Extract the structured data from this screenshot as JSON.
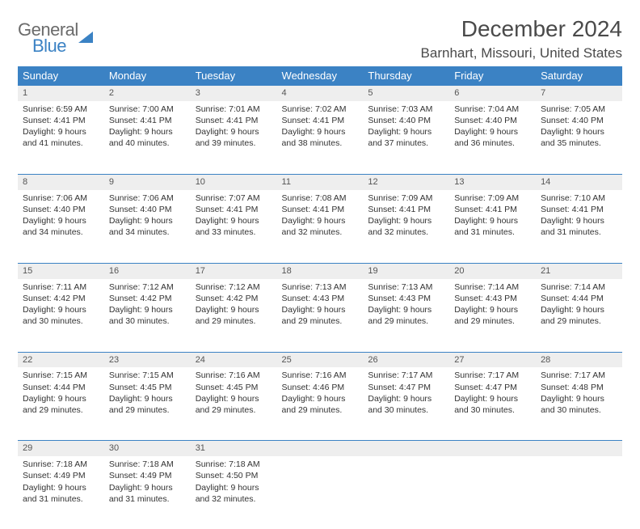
{
  "brand": {
    "part1": "General",
    "part2": "Blue"
  },
  "title": "December 2024",
  "location": "Barnhart, Missouri, United States",
  "colors": {
    "header_bg": "#3b82c4",
    "header_fg": "#ffffff",
    "daynum_bg": "#eeeeee",
    "rule": "#3b82c4",
    "text": "#333333"
  },
  "weekdays": [
    "Sunday",
    "Monday",
    "Tuesday",
    "Wednesday",
    "Thursday",
    "Friday",
    "Saturday"
  ],
  "weeks": [
    [
      {
        "n": "1",
        "sunrise": "6:59 AM",
        "sunset": "4:41 PM",
        "daylight": "9 hours and 41 minutes."
      },
      {
        "n": "2",
        "sunrise": "7:00 AM",
        "sunset": "4:41 PM",
        "daylight": "9 hours and 40 minutes."
      },
      {
        "n": "3",
        "sunrise": "7:01 AM",
        "sunset": "4:41 PM",
        "daylight": "9 hours and 39 minutes."
      },
      {
        "n": "4",
        "sunrise": "7:02 AM",
        "sunset": "4:41 PM",
        "daylight": "9 hours and 38 minutes."
      },
      {
        "n": "5",
        "sunrise": "7:03 AM",
        "sunset": "4:40 PM",
        "daylight": "9 hours and 37 minutes."
      },
      {
        "n": "6",
        "sunrise": "7:04 AM",
        "sunset": "4:40 PM",
        "daylight": "9 hours and 36 minutes."
      },
      {
        "n": "7",
        "sunrise": "7:05 AM",
        "sunset": "4:40 PM",
        "daylight": "9 hours and 35 minutes."
      }
    ],
    [
      {
        "n": "8",
        "sunrise": "7:06 AM",
        "sunset": "4:40 PM",
        "daylight": "9 hours and 34 minutes."
      },
      {
        "n": "9",
        "sunrise": "7:06 AM",
        "sunset": "4:40 PM",
        "daylight": "9 hours and 34 minutes."
      },
      {
        "n": "10",
        "sunrise": "7:07 AM",
        "sunset": "4:41 PM",
        "daylight": "9 hours and 33 minutes."
      },
      {
        "n": "11",
        "sunrise": "7:08 AM",
        "sunset": "4:41 PM",
        "daylight": "9 hours and 32 minutes."
      },
      {
        "n": "12",
        "sunrise": "7:09 AM",
        "sunset": "4:41 PM",
        "daylight": "9 hours and 32 minutes."
      },
      {
        "n": "13",
        "sunrise": "7:09 AM",
        "sunset": "4:41 PM",
        "daylight": "9 hours and 31 minutes."
      },
      {
        "n": "14",
        "sunrise": "7:10 AM",
        "sunset": "4:41 PM",
        "daylight": "9 hours and 31 minutes."
      }
    ],
    [
      {
        "n": "15",
        "sunrise": "7:11 AM",
        "sunset": "4:42 PM",
        "daylight": "9 hours and 30 minutes."
      },
      {
        "n": "16",
        "sunrise": "7:12 AM",
        "sunset": "4:42 PM",
        "daylight": "9 hours and 30 minutes."
      },
      {
        "n": "17",
        "sunrise": "7:12 AM",
        "sunset": "4:42 PM",
        "daylight": "9 hours and 29 minutes."
      },
      {
        "n": "18",
        "sunrise": "7:13 AM",
        "sunset": "4:43 PM",
        "daylight": "9 hours and 29 minutes."
      },
      {
        "n": "19",
        "sunrise": "7:13 AM",
        "sunset": "4:43 PM",
        "daylight": "9 hours and 29 minutes."
      },
      {
        "n": "20",
        "sunrise": "7:14 AM",
        "sunset": "4:43 PM",
        "daylight": "9 hours and 29 minutes."
      },
      {
        "n": "21",
        "sunrise": "7:14 AM",
        "sunset": "4:44 PM",
        "daylight": "9 hours and 29 minutes."
      }
    ],
    [
      {
        "n": "22",
        "sunrise": "7:15 AM",
        "sunset": "4:44 PM",
        "daylight": "9 hours and 29 minutes."
      },
      {
        "n": "23",
        "sunrise": "7:15 AM",
        "sunset": "4:45 PM",
        "daylight": "9 hours and 29 minutes."
      },
      {
        "n": "24",
        "sunrise": "7:16 AM",
        "sunset": "4:45 PM",
        "daylight": "9 hours and 29 minutes."
      },
      {
        "n": "25",
        "sunrise": "7:16 AM",
        "sunset": "4:46 PM",
        "daylight": "9 hours and 29 minutes."
      },
      {
        "n": "26",
        "sunrise": "7:17 AM",
        "sunset": "4:47 PM",
        "daylight": "9 hours and 30 minutes."
      },
      {
        "n": "27",
        "sunrise": "7:17 AM",
        "sunset": "4:47 PM",
        "daylight": "9 hours and 30 minutes."
      },
      {
        "n": "28",
        "sunrise": "7:17 AM",
        "sunset": "4:48 PM",
        "daylight": "9 hours and 30 minutes."
      }
    ],
    [
      {
        "n": "29",
        "sunrise": "7:18 AM",
        "sunset": "4:49 PM",
        "daylight": "9 hours and 31 minutes."
      },
      {
        "n": "30",
        "sunrise": "7:18 AM",
        "sunset": "4:49 PM",
        "daylight": "9 hours and 31 minutes."
      },
      {
        "n": "31",
        "sunrise": "7:18 AM",
        "sunset": "4:50 PM",
        "daylight": "9 hours and 32 minutes."
      },
      null,
      null,
      null,
      null
    ]
  ],
  "labels": {
    "sunrise": "Sunrise:",
    "sunset": "Sunset:",
    "daylight": "Daylight:"
  }
}
